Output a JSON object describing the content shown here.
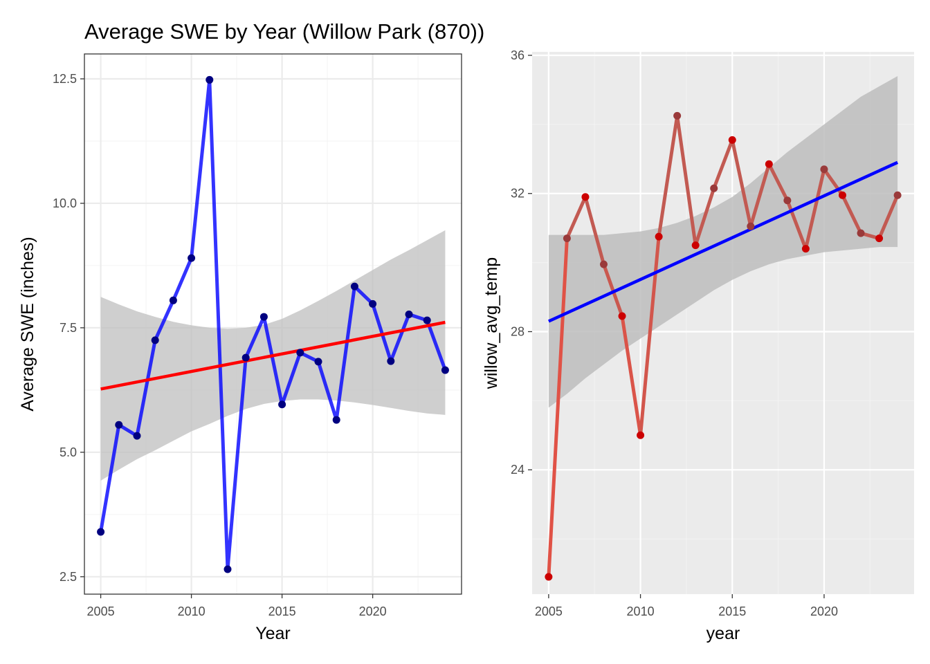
{
  "title": "Average SWE by Year (Willow Park (870))",
  "chart_data": [
    {
      "type": "line",
      "theme": "bw",
      "xlabel": "Year",
      "ylabel": "Average SWE (inches)",
      "xlim": [
        2004.1,
        2024.9
      ],
      "ylim": [
        2.15,
        13.0
      ],
      "xticks": [
        2005,
        2010,
        2015,
        2020
      ],
      "xtick_labels": [
        "2005",
        "2010",
        "2015",
        "2020"
      ],
      "yticks": [
        2.5,
        5.0,
        7.5,
        10.0,
        12.5
      ],
      "ytick_labels": [
        "2.5",
        "5.0",
        "7.5",
        "10.0",
        "12.5"
      ],
      "grid": true,
      "x": [
        2005,
        2006,
        2007,
        2008,
        2009,
        2010,
        2011,
        2012,
        2013,
        2014,
        2015,
        2016,
        2017,
        2018,
        2019,
        2020,
        2021,
        2022,
        2023,
        2024
      ],
      "series": [
        {
          "values": [
            3.4,
            5.55,
            5.33,
            7.25,
            8.05,
            8.9,
            12.48,
            2.65,
            6.9,
            7.72,
            5.96,
            7.0,
            6.82,
            5.65,
            8.33,
            7.98,
            6.83,
            7.77,
            7.65,
            6.65
          ],
          "line_color": "#0000ff",
          "point_color": "#000080"
        }
      ],
      "trend": {
        "start": [
          2005,
          6.27
        ],
        "end": [
          2024,
          7.61
        ],
        "color": "#ff0000"
      },
      "band": {
        "x": [
          2005,
          2006,
          2007,
          2008,
          2009,
          2010,
          2011,
          2012,
          2013,
          2014,
          2015,
          2016,
          2017,
          2018,
          2019,
          2020,
          2021,
          2022,
          2023,
          2024
        ],
        "upper": [
          8.12,
          7.97,
          7.83,
          7.72,
          7.62,
          7.55,
          7.5,
          7.48,
          7.5,
          7.56,
          7.68,
          7.85,
          8.04,
          8.24,
          8.45,
          8.66,
          8.87,
          9.06,
          9.26,
          9.46
        ],
        "lower": [
          4.43,
          4.65,
          4.86,
          5.04,
          5.23,
          5.42,
          5.57,
          5.73,
          5.87,
          5.97,
          6.03,
          6.06,
          6.06,
          6.04,
          6.0,
          5.95,
          5.89,
          5.83,
          5.78,
          5.75
        ],
        "color": "#bfbfbf"
      }
    },
    {
      "type": "line",
      "theme": "gray",
      "xlabel": "year",
      "ylabel": "willow_avg_temp",
      "xlim": [
        2004.1,
        2024.9
      ],
      "ylim": [
        20.4,
        36.1
      ],
      "xticks": [
        2005,
        2010,
        2015,
        2020
      ],
      "xtick_labels": [
        "2005",
        "2010",
        "2015",
        "2020"
      ],
      "yticks": [
        24,
        28,
        32,
        36
      ],
      "ytick_labels": [
        "24",
        "28",
        "32",
        "36"
      ],
      "grid": true,
      "x": [
        2005,
        2006,
        2007,
        2008,
        2009,
        2010,
        2011,
        2012,
        2013,
        2014,
        2015,
        2016,
        2017,
        2018,
        2019,
        2020,
        2021,
        2022,
        2023,
        2024
      ],
      "series": [
        {
          "values": [
            20.9,
            30.7,
            31.9,
            29.95,
            28.45,
            25.0,
            30.75,
            34.25,
            30.5,
            32.15,
            33.55,
            31.05,
            32.85,
            31.8,
            30.4,
            32.7,
            31.95,
            30.85,
            30.7,
            31.95
          ],
          "line_color_low": "#ff4a3a",
          "line_color_high": "#c25a52",
          "point_color_low": "#cc0000",
          "point_color_high": "#9a3a3a"
        }
      ],
      "trend": {
        "start": [
          2005,
          28.3
        ],
        "end": [
          2024,
          32.9
        ],
        "color": "#0000ff"
      },
      "band": {
        "x": [
          2005,
          2006,
          2007,
          2008,
          2009,
          2010,
          2011,
          2012,
          2013,
          2014,
          2015,
          2016,
          2017,
          2018,
          2019,
          2020,
          2021,
          2022,
          2023,
          2024
        ],
        "upper": [
          30.8,
          30.8,
          30.8,
          30.8,
          30.85,
          30.9,
          31.0,
          31.15,
          31.35,
          31.6,
          31.9,
          32.3,
          32.75,
          33.2,
          33.6,
          34.0,
          34.4,
          34.8,
          35.1,
          35.4
        ],
        "lower": [
          25.8,
          26.2,
          26.65,
          27.05,
          27.45,
          27.8,
          28.15,
          28.5,
          28.85,
          29.2,
          29.5,
          29.75,
          29.95,
          30.1,
          30.2,
          30.3,
          30.35,
          30.4,
          30.45,
          30.45
        ],
        "color": "#bdbdbd"
      }
    }
  ]
}
